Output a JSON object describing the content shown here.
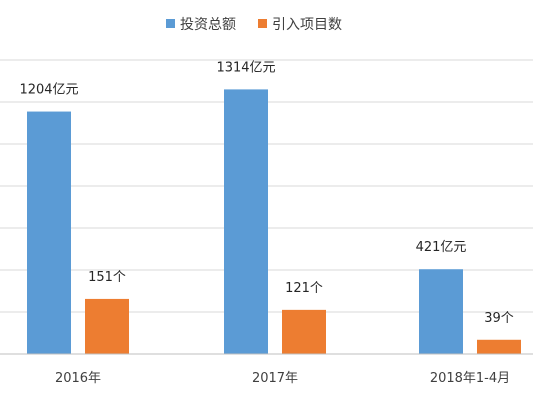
{
  "chart_data": {
    "type": "bar",
    "categories": [
      "2016年",
      "2017年",
      "2018年1-4月"
    ],
    "series": [
      {
        "name": "投资总额",
        "values": [
          1204,
          1314,
          421
        ],
        "labels": [
          "1204亿元",
          "1314亿元",
          "421亿元"
        ],
        "color": "#5b9bd5",
        "ylim": [
          0,
          1460
        ]
      },
      {
        "name": "引入项目数",
        "values": [
          151,
          121,
          39
        ],
        "labels": [
          "151个",
          "121个",
          "39个"
        ],
        "color": "#ed7d31",
        "ylim": [
          0,
          806
        ]
      }
    ],
    "grid": true,
    "legend": "top-center"
  }
}
